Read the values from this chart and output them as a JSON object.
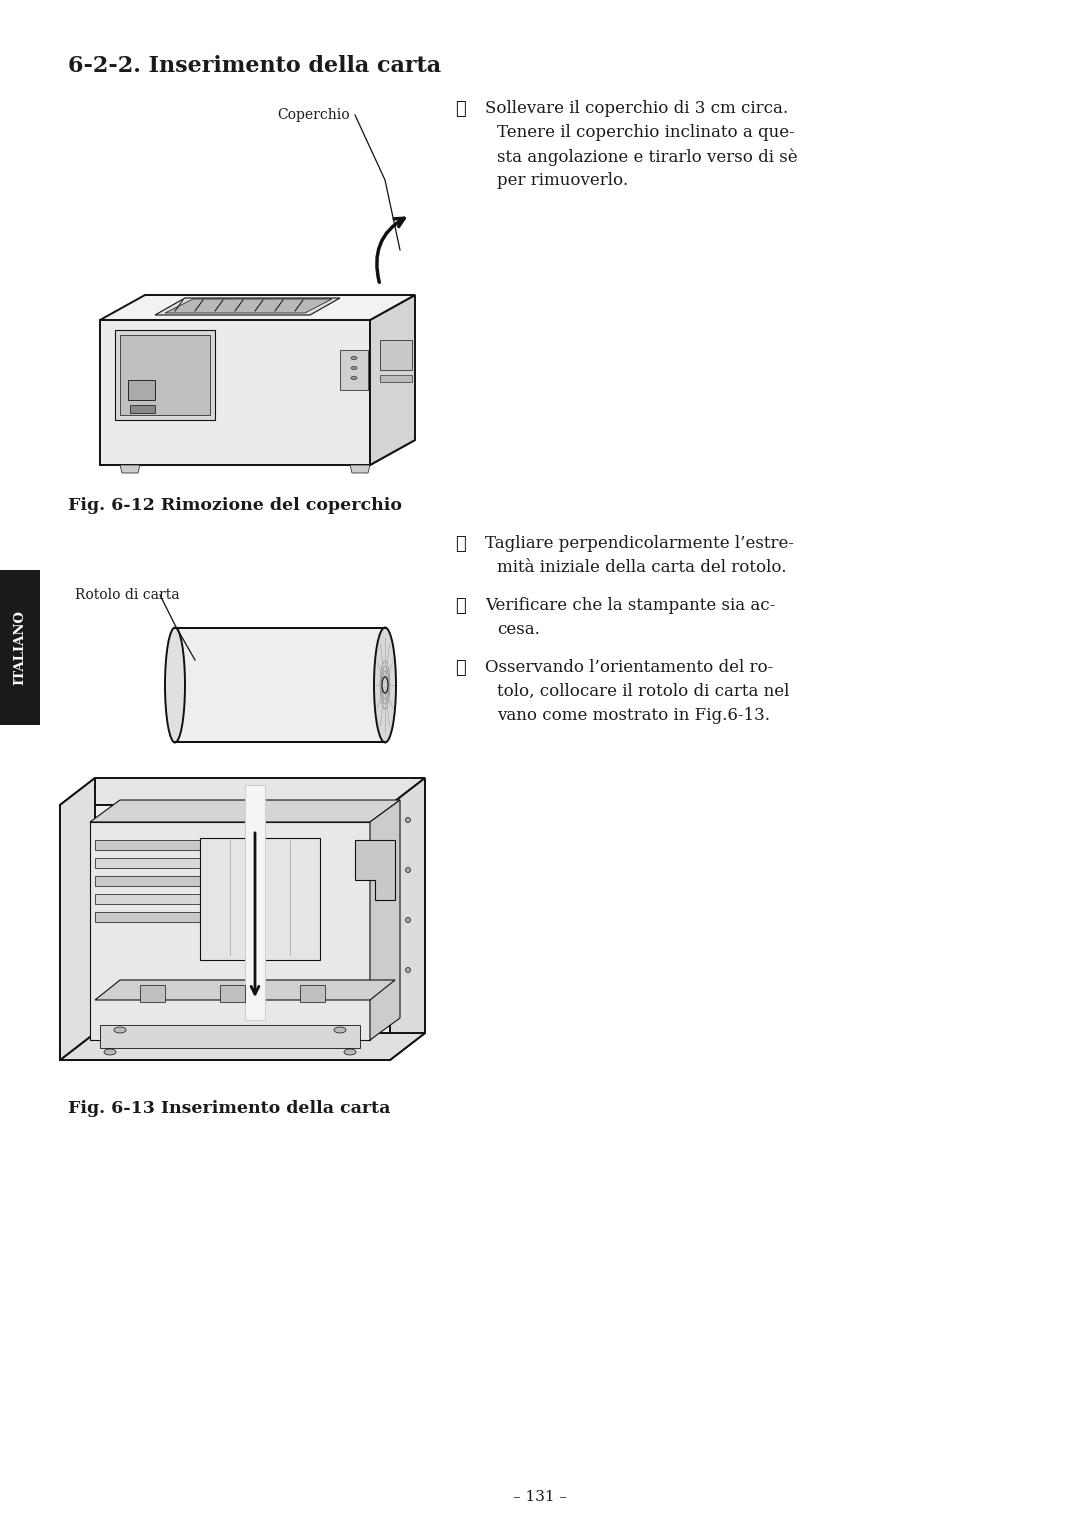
{
  "bg_color": "#ffffff",
  "title": "6-2-2. Inserimento della carta",
  "title_fontsize": 16,
  "page_number": "– 131 –",
  "side_label": "ITALIANO",
  "label_coperchio": "Coperchio",
  "label_rotolo": "Rotolo di carta",
  "fig_caption1": "Fig. 6-12 Rimozione del coperchio",
  "fig_caption2": "Fig. 6-13 Inserimento della carta",
  "step1_num": "①",
  "step1_lines": [
    "Sollevare il coperchio di 3 cm circa.",
    "Tenere il coperchio inclinato a que-",
    "sta angolazione e tirarlo verso di sè",
    "per rimuoverlo."
  ],
  "step2_num": "②",
  "step2_lines": [
    "Tagliare perpendicolarmente l’estre-",
    "mità iniziale della carta del rotolo."
  ],
  "step3_num": "③",
  "step3_lines": [
    "Verificare che la stampante sia ac-",
    "cesa."
  ],
  "step4_num": "④",
  "step4_lines": [
    "Osservando l’orientamento del ro-",
    "tolo, collocare il rotolo di carta nel",
    "vano come mostrato in Fig.6-13."
  ],
  "text_color": "#1a1a1a",
  "font_family": "DejaVu Serif",
  "italiano_bg": "#1a1a1a",
  "italiano_fg": "#ffffff"
}
